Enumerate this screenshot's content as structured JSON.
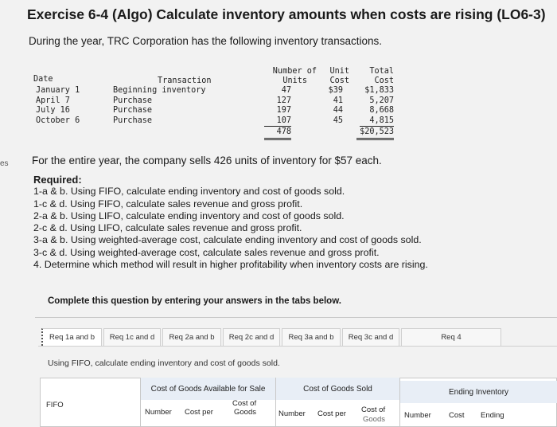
{
  "header": {
    "title": "Exercise 6-4 (Algo) Calculate inventory amounts when costs are rising (LO6-3)",
    "intro": "During the year, TRC Corporation has the following inventory transactions.",
    "side_mark": "es"
  },
  "transactions": {
    "headers": {
      "date": "Date",
      "transaction": "Transaction",
      "units_line1": "Number of",
      "units_line2": "Units",
      "cost_line1": "Unit",
      "cost_line2": "Cost",
      "total_line1": "Total",
      "total_line2": "Cost"
    },
    "rows": [
      {
        "date": "January 1",
        "transaction": "Beginning inventory",
        "units": "47",
        "unit_cost": "$39",
        "total": "$1,833"
      },
      {
        "date": "April 7",
        "transaction": "Purchase",
        "units": "127",
        "unit_cost": "41",
        "total": "5,207"
      },
      {
        "date": "July 16",
        "transaction": "Purchase",
        "units": "197",
        "unit_cost": "44",
        "total": "8,668"
      },
      {
        "date": "October 6",
        "transaction": "Purchase",
        "units": "107",
        "unit_cost": "45",
        "total": "4,815"
      }
    ],
    "totals": {
      "units": "478",
      "total": "$20,523"
    }
  },
  "sales_note": "For the entire year, the company sells 426 units of inventory for $57 each.",
  "required": {
    "title": "Required:",
    "items": [
      "1-a & b. Using FIFO, calculate ending inventory and cost of goods sold.",
      "1-c & d. Using FIFO, calculate sales revenue and gross profit.",
      "2-a & b. Using LIFO, calculate ending inventory and cost of goods sold.",
      "2-c & d. Using LIFO, calculate sales revenue and gross profit.",
      "3-a & b. Using weighted-average cost, calculate ending inventory and cost of goods sold.",
      "3-c & d. Using weighted-average cost, calculate sales revenue and gross profit.",
      "4. Determine which method will result in higher profitability when inventory costs are rising."
    ]
  },
  "complete_prompt": "Complete this question by entering your answers in the tabs below.",
  "tabs": [
    {
      "label": "Req 1a and b",
      "active": true
    },
    {
      "label": "Req 1c and d",
      "active": false
    },
    {
      "label": "Req 2a and b",
      "active": false
    },
    {
      "label": "Req 2c and d",
      "active": false
    },
    {
      "label": "Req 3a and b",
      "active": false
    },
    {
      "label": "Req 3c and d",
      "active": false
    },
    {
      "label": "Req 4",
      "active": false
    }
  ],
  "tab_instruction": "Using FIFO, calculate ending inventory and cost of goods sold.",
  "answer_grid": {
    "groups": {
      "available": "Cost of Goods Available for Sale",
      "sold": "Cost of Goods Sold",
      "ending": "Ending Inventory"
    },
    "row_label": "FIFO",
    "columns": {
      "number": "Number",
      "cost_per": "Cost per",
      "cost_of_goods_line1": "Cost of",
      "cost_of_goods_line2": "Goods",
      "sold_number": "Number",
      "sold_cost_per": "Cost per",
      "sold_cost_of_line1": "Cost of",
      "sold_cost_of_line2": "Goods",
      "end_number": "Number",
      "end_cost": "Cost",
      "end_ending": "Ending"
    }
  }
}
